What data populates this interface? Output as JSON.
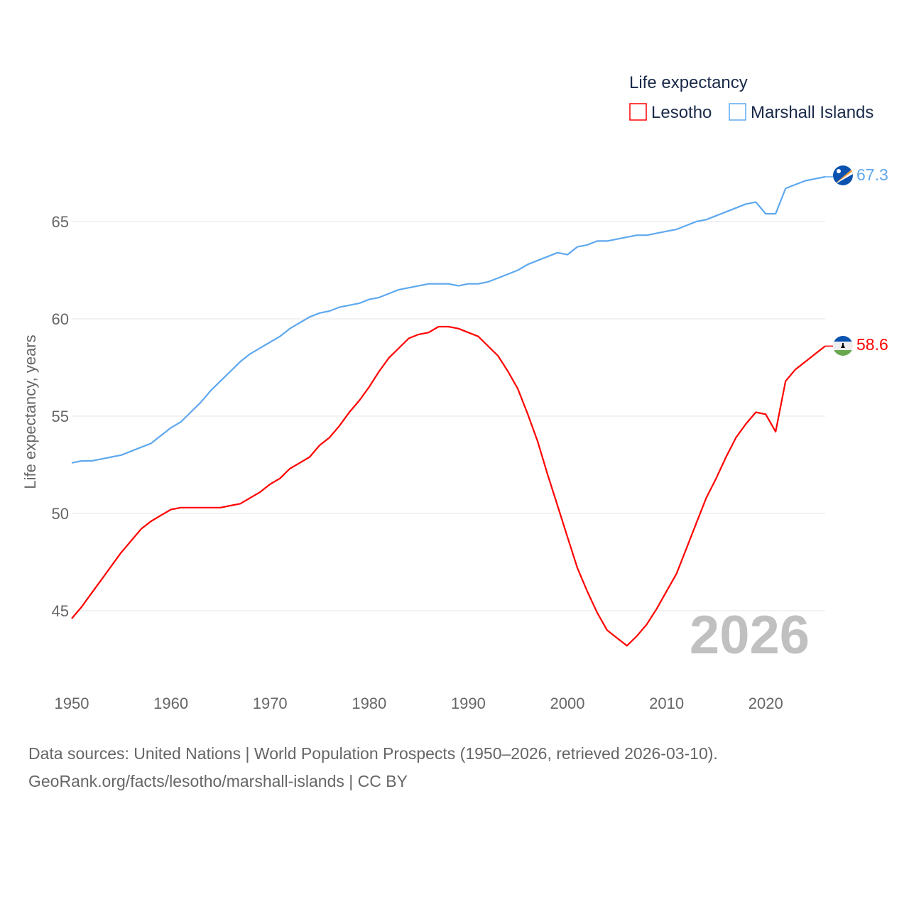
{
  "legend": {
    "title": "Life expectancy",
    "items": [
      "Lesotho",
      "Marshall Islands"
    ]
  },
  "footer": {
    "line1": "Data sources: United Nations | World Population Prospects (1950–2026, retrieved 2026-03-10).",
    "line2": "GeoRank.org/facts/lesotho/marshall-islands | CC BY"
  },
  "year_watermark": "2026",
  "chart_data": {
    "type": "line",
    "title": "Life expectancy",
    "xlabel": "",
    "ylabel": "Life expectancy, years",
    "xlim": [
      1950,
      2026
    ],
    "ylim": [
      42.5,
      68
    ],
    "yticks": [
      45,
      50,
      55,
      60,
      65
    ],
    "xticks": [
      1950,
      1960,
      1970,
      1980,
      1990,
      2000,
      2010,
      2020
    ],
    "grid": true,
    "legend_position": "top-right",
    "x": [
      1950,
      1951,
      1952,
      1953,
      1954,
      1955,
      1956,
      1957,
      1958,
      1959,
      1960,
      1961,
      1962,
      1963,
      1964,
      1965,
      1966,
      1967,
      1968,
      1969,
      1970,
      1971,
      1972,
      1973,
      1974,
      1975,
      1976,
      1977,
      1978,
      1979,
      1980,
      1981,
      1982,
      1983,
      1984,
      1985,
      1986,
      1987,
      1988,
      1989,
      1990,
      1991,
      1992,
      1993,
      1994,
      1995,
      1996,
      1997,
      1998,
      1999,
      2000,
      2001,
      2002,
      2003,
      2004,
      2005,
      2006,
      2007,
      2008,
      2009,
      2010,
      2011,
      2012,
      2013,
      2014,
      2015,
      2016,
      2017,
      2018,
      2019,
      2020,
      2021,
      2022,
      2023,
      2024,
      2025,
      2026
    ],
    "series": [
      {
        "name": "Lesotho",
        "color": "#ff0000",
        "end_label": "58.6",
        "values": [
          44.6,
          45.2,
          45.9,
          46.6,
          47.3,
          48.0,
          48.6,
          49.2,
          49.6,
          49.9,
          50.2,
          50.3,
          50.3,
          50.3,
          50.3,
          50.3,
          50.4,
          50.5,
          50.8,
          51.1,
          51.5,
          51.8,
          52.3,
          52.6,
          52.9,
          53.5,
          53.9,
          54.5,
          55.2,
          55.8,
          56.5,
          57.3,
          58.0,
          58.5,
          59.0,
          59.2,
          59.3,
          59.6,
          59.6,
          59.5,
          59.3,
          59.1,
          58.6,
          58.1,
          57.3,
          56.4,
          55.1,
          53.7,
          52.0,
          50.4,
          48.8,
          47.2,
          46.0,
          44.9,
          44.0,
          43.6,
          43.2,
          43.7,
          44.3,
          45.1,
          46.0,
          46.9,
          48.2,
          49.5,
          50.8,
          51.8,
          52.9,
          53.9,
          54.6,
          55.2,
          55.1,
          54.2,
          56.8,
          57.4,
          57.8,
          58.2,
          58.6
        ]
      },
      {
        "name": "Marshall Islands",
        "color": "#5ea8ee",
        "end_label": "67.3",
        "values": [
          52.6,
          52.7,
          52.7,
          52.8,
          52.9,
          53.0,
          53.2,
          53.4,
          53.6,
          54.0,
          54.4,
          54.7,
          55.2,
          55.7,
          56.3,
          56.8,
          57.3,
          57.8,
          58.2,
          58.5,
          58.8,
          59.1,
          59.5,
          59.8,
          60.1,
          60.3,
          60.4,
          60.6,
          60.7,
          60.8,
          61.0,
          61.1,
          61.3,
          61.5,
          61.6,
          61.7,
          61.8,
          61.8,
          61.8,
          61.7,
          61.8,
          61.8,
          61.9,
          62.1,
          62.3,
          62.5,
          62.8,
          63.0,
          63.2,
          63.4,
          63.3,
          63.7,
          63.8,
          64.0,
          64.0,
          64.1,
          64.2,
          64.3,
          64.3,
          64.4,
          64.5,
          64.6,
          64.8,
          65.0,
          65.1,
          65.3,
          65.5,
          65.7,
          65.9,
          66.0,
          65.4,
          65.4,
          66.7,
          66.9,
          67.1,
          67.2,
          67.3
        ]
      }
    ]
  }
}
